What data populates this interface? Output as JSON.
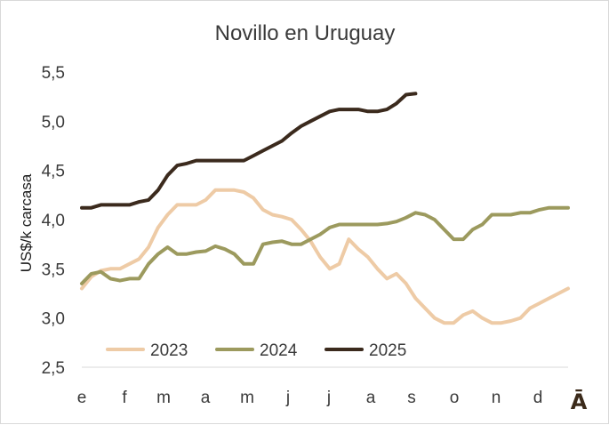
{
  "chart_data": {
    "type": "line",
    "title": "Novillo en Uruguay",
    "xlabel": "",
    "ylabel": "US$/k carcasa",
    "ylim": [
      2.5,
      5.5
    ],
    "yticks": [
      "2,5",
      "3,0",
      "3,5",
      "4,0",
      "4,5",
      "5,0",
      "5,5"
    ],
    "ytick_values": [
      2.5,
      3.0,
      3.5,
      4.0,
      4.5,
      5.0,
      5.5
    ],
    "categories": [
      "e",
      "f",
      "m",
      "a",
      "m",
      "j",
      "j",
      "a",
      "s",
      "o",
      "n",
      "d"
    ],
    "x_unit": "week",
    "xlim": [
      1,
      52
    ],
    "corner_mark": "Ā",
    "grid": false,
    "legend_position": "bottom-left",
    "series": [
      {
        "name": "2023",
        "color": "#eecba6",
        "x": [
          1,
          2,
          3,
          4,
          5,
          6,
          7,
          8,
          9,
          10,
          11,
          12,
          13,
          14,
          15,
          16,
          17,
          18,
          19,
          20,
          21,
          22,
          23,
          24,
          25,
          26,
          27,
          28,
          29,
          30,
          31,
          32,
          33,
          34,
          35,
          36,
          37,
          38,
          39,
          40,
          41,
          42,
          43,
          44,
          45,
          46,
          47,
          48,
          49,
          50,
          51,
          52
        ],
        "values": [
          3.3,
          3.42,
          3.48,
          3.5,
          3.5,
          3.55,
          3.6,
          3.72,
          3.92,
          4.05,
          4.15,
          4.15,
          4.15,
          4.2,
          4.3,
          4.3,
          4.3,
          4.28,
          4.22,
          4.1,
          4.05,
          4.03,
          4.0,
          3.9,
          3.78,
          3.62,
          3.5,
          3.55,
          3.8,
          3.7,
          3.62,
          3.5,
          3.4,
          3.45,
          3.35,
          3.2,
          3.1,
          3.0,
          2.95,
          2.95,
          3.03,
          3.07,
          3.0,
          2.95,
          2.95,
          2.97,
          3.0,
          3.1,
          3.15,
          3.2,
          3.25,
          3.3
        ]
      },
      {
        "name": "2024",
        "color": "#9c9a5e",
        "x": [
          1,
          2,
          3,
          4,
          5,
          6,
          7,
          8,
          9,
          10,
          11,
          12,
          13,
          14,
          15,
          16,
          17,
          18,
          19,
          20,
          21,
          22,
          23,
          24,
          25,
          26,
          27,
          28,
          29,
          30,
          31,
          32,
          33,
          34,
          35,
          36,
          37,
          38,
          39,
          40,
          41,
          42,
          43,
          44,
          45,
          46,
          47,
          48,
          49,
          50,
          51,
          52
        ],
        "values": [
          3.35,
          3.45,
          3.47,
          3.4,
          3.38,
          3.4,
          3.4,
          3.55,
          3.65,
          3.72,
          3.65,
          3.65,
          3.67,
          3.68,
          3.73,
          3.7,
          3.65,
          3.55,
          3.55,
          3.75,
          3.77,
          3.78,
          3.75,
          3.75,
          3.8,
          3.85,
          3.92,
          3.95,
          3.95,
          3.95,
          3.95,
          3.95,
          3.96,
          3.98,
          4.02,
          4.07,
          4.05,
          4.0,
          3.9,
          3.8,
          3.8,
          3.9,
          3.95,
          4.05,
          4.05,
          4.05,
          4.07,
          4.07,
          4.1,
          4.12,
          4.12,
          4.12
        ]
      },
      {
        "name": "2025",
        "color": "#3b2a1d",
        "x": [
          1,
          2,
          3,
          4,
          5,
          6,
          7,
          8,
          9,
          10,
          11,
          12,
          13,
          14,
          15,
          16,
          17,
          18,
          19,
          20,
          21,
          22,
          23,
          24,
          25,
          26,
          27,
          28,
          29,
          30,
          31,
          32,
          33,
          34,
          35,
          36
        ],
        "values": [
          4.12,
          4.12,
          4.15,
          4.15,
          4.15,
          4.15,
          4.18,
          4.2,
          4.3,
          4.45,
          4.55,
          4.57,
          4.6,
          4.6,
          4.6,
          4.6,
          4.6,
          4.6,
          4.65,
          4.7,
          4.75,
          4.8,
          4.88,
          4.95,
          5.0,
          5.05,
          5.1,
          5.12,
          5.12,
          5.12,
          5.1,
          5.1,
          5.12,
          5.18,
          5.27,
          5.28
        ]
      }
    ]
  }
}
